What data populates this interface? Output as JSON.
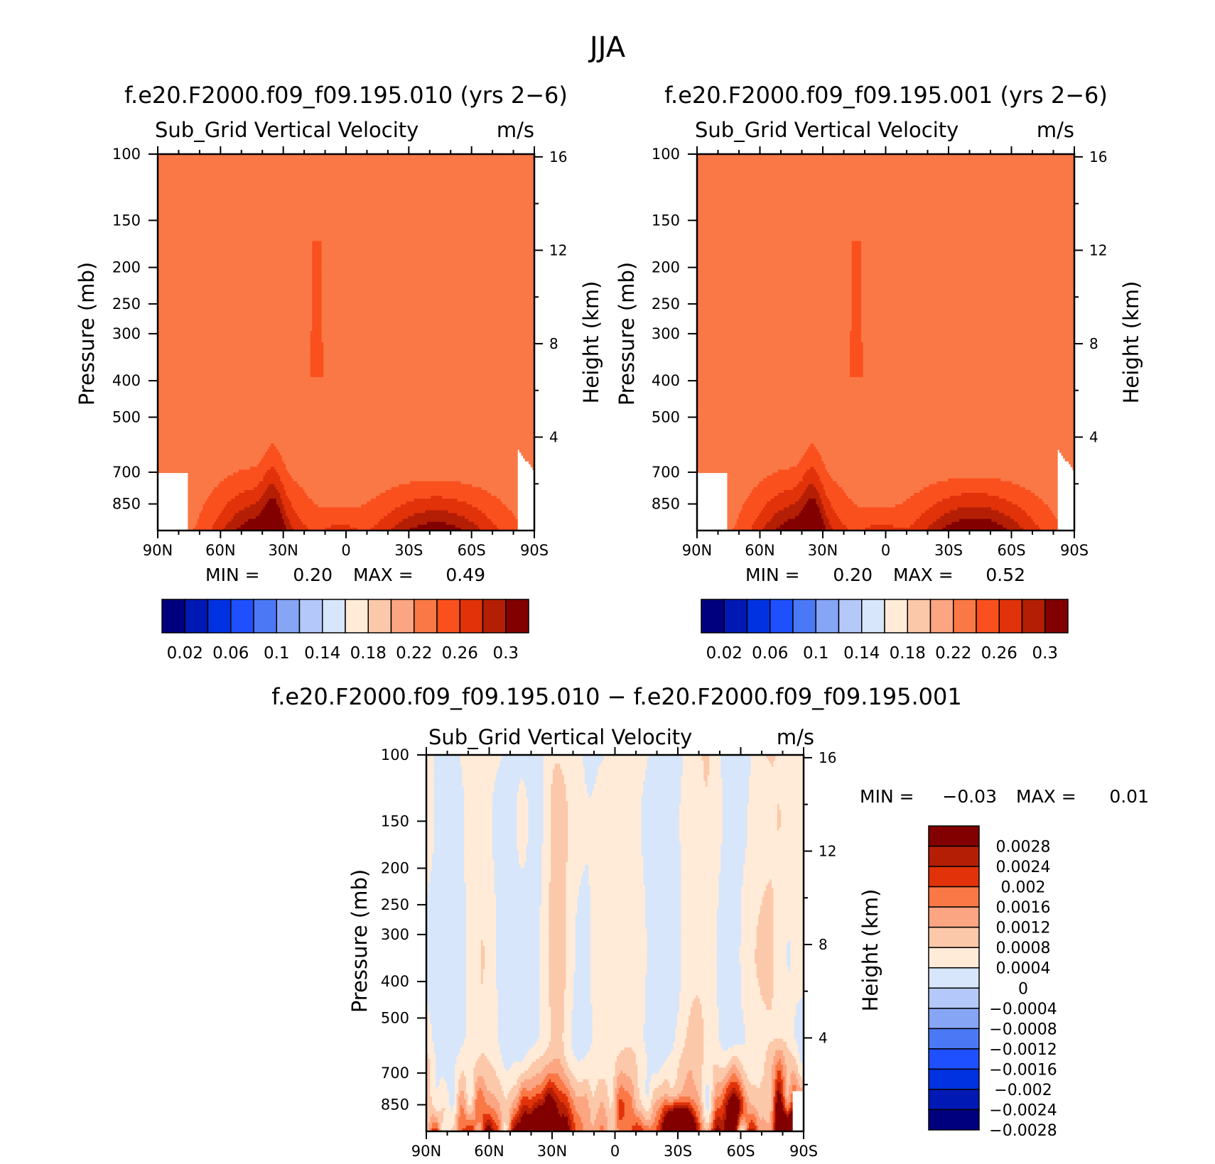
{
  "figure_title": "JJA",
  "chart_data": [
    {
      "type": "heatmap",
      "id": "panel_a",
      "title": "f.e20.F2000.f09_f09.195.010 (yrs 2−6)",
      "subtitle_left": "Sub_Grid Vertical Velocity",
      "subtitle_right": "m/s",
      "xlabel": "",
      "ylabel": "Pressure (mb)",
      "ylabel_right": "Height (km)",
      "x_ticks": [
        "90N",
        "60N",
        "30N",
        "0",
        "30S",
        "60S",
        "90S"
      ],
      "y_ticks": [
        "100",
        "150",
        "200",
        "250",
        "300",
        "400",
        "500",
        "700",
        "850"
      ],
      "y_ticks_right": [
        "16",
        "12",
        "8",
        "4"
      ],
      "x_range": [
        90,
        -90
      ],
      "y_range_mb": [
        100,
        1000
      ],
      "y_scale": "log",
      "min_label": "MIN =",
      "min_value": "0.20",
      "max_label": "MAX =",
      "max_value": "0.49",
      "levels": [
        0.02,
        0.04,
        0.06,
        0.08,
        0.1,
        0.12,
        0.14,
        0.16,
        0.18,
        0.2,
        0.22,
        0.24,
        0.26,
        0.28,
        0.3
      ],
      "colorbar_labels": [
        "0.02",
        "0.06",
        "0.1",
        "0.14",
        "0.18",
        "0.22",
        "0.26",
        "0.3"
      ],
      "colors": [
        "#00007f",
        "#0019b4",
        "#0032e1",
        "#1e50ff",
        "#4b78f5",
        "#87a5f5",
        "#b4c8fa",
        "#d7e6fa",
        "#ffebd7",
        "#fcc8aa",
        "#fca582",
        "#fa7846",
        "#fa501e",
        "#e1320a",
        "#b41e05",
        "#820000"
      ]
    },
    {
      "type": "heatmap",
      "id": "panel_b",
      "title": "f.e20.F2000.f09_f09.195.001 (yrs 2−6)",
      "subtitle_left": "Sub_Grid Vertical Velocity",
      "subtitle_right": "m/s",
      "xlabel": "",
      "ylabel": "Pressure (mb)",
      "ylabel_right": "Height (km)",
      "x_ticks": [
        "90N",
        "60N",
        "30N",
        "0",
        "30S",
        "60S",
        "90S"
      ],
      "y_ticks": [
        "100",
        "150",
        "200",
        "250",
        "300",
        "400",
        "500",
        "700",
        "850"
      ],
      "y_ticks_right": [
        "16",
        "12",
        "8",
        "4"
      ],
      "x_range": [
        90,
        -90
      ],
      "y_range_mb": [
        100,
        1000
      ],
      "y_scale": "log",
      "min_label": "MIN =",
      "min_value": "0.20",
      "max_label": "MAX =",
      "max_value": "0.52",
      "levels": [
        0.02,
        0.04,
        0.06,
        0.08,
        0.1,
        0.12,
        0.14,
        0.16,
        0.18,
        0.2,
        0.22,
        0.24,
        0.26,
        0.28,
        0.3
      ],
      "colorbar_labels": [
        "0.02",
        "0.06",
        "0.1",
        "0.14",
        "0.18",
        "0.22",
        "0.26",
        "0.3"
      ],
      "colors": [
        "#00007f",
        "#0019b4",
        "#0032e1",
        "#1e50ff",
        "#4b78f5",
        "#87a5f5",
        "#b4c8fa",
        "#d7e6fa",
        "#ffebd7",
        "#fcc8aa",
        "#fca582",
        "#fa7846",
        "#fa501e",
        "#e1320a",
        "#b41e05",
        "#820000"
      ]
    },
    {
      "type": "heatmap",
      "id": "panel_diff",
      "title": "f.e20.F2000.f09_f09.195.010 − f.e20.F2000.f09_f09.195.001",
      "subtitle_left": "Sub_Grid Vertical Velocity",
      "subtitle_right": "m/s",
      "xlabel": "",
      "ylabel": "Pressure (mb)",
      "ylabel_right": "Height (km)",
      "x_ticks": [
        "90N",
        "60N",
        "30N",
        "0",
        "30S",
        "60S",
        "90S"
      ],
      "y_ticks": [
        "100",
        "150",
        "200",
        "250",
        "300",
        "400",
        "500",
        "700",
        "850"
      ],
      "y_ticks_right": [
        "16",
        "12",
        "8",
        "4"
      ],
      "x_range": [
        90,
        -90
      ],
      "y_range_mb": [
        100,
        1000
      ],
      "y_scale": "log",
      "min_label": "MIN =",
      "min_value": "−0.03",
      "max_label": "MAX =",
      "max_value": "0.01",
      "levels": [
        -0.0028,
        -0.0024,
        -0.002,
        -0.0016,
        -0.0012,
        -0.0008,
        -0.0004,
        0,
        0.0004,
        0.0008,
        0.0012,
        0.0016,
        0.002,
        0.0024,
        0.0028
      ],
      "colorbar_labels": [
        "0.0028",
        "0.0024",
        "0.002",
        "0.0016",
        "0.0012",
        "0.0008",
        "0.0004",
        "0",
        "−0.0004",
        "−0.0008",
        "−0.0012",
        "−0.0016",
        "−0.002",
        "−0.0024",
        "−0.0028"
      ],
      "colors": [
        "#820000",
        "#b41e05",
        "#e1320a",
        "#fa7846",
        "#fca582",
        "#fcc8aa",
        "#ffebd7",
        "#d7e6fa",
        "#b4c8fa",
        "#87a5f5",
        "#4b78f5",
        "#1e50ff",
        "#0032e1",
        "#0019b4",
        "#00007f"
      ]
    }
  ]
}
